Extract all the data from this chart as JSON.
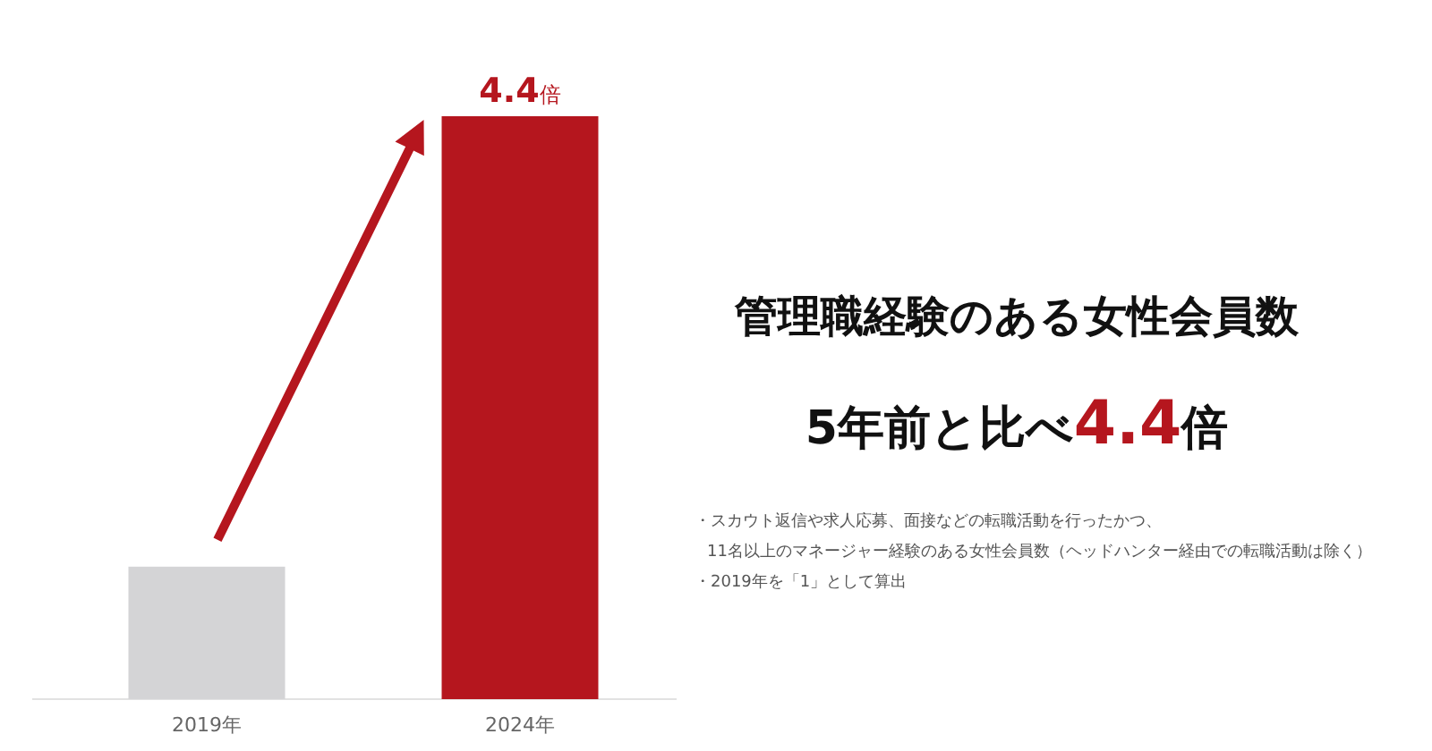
{
  "chart_data": {
    "type": "bar",
    "title": "管理職経験のある女性会員数",
    "subtitle": "5年前と比べ4.4倍",
    "categories": [
      "2019年",
      "2024年"
    ],
    "values": [
      1,
      4.4
    ],
    "colors": [
      "#d4d4d6",
      "#b5161e"
    ],
    "value_labels": [
      null,
      "4.4倍"
    ],
    "annotations": [
      "・スカウト返信や求人応募、面接などの転職活動を行ったかつ、",
      "11名以上のマネージャー経験のある女性会員数（ヘッドハンター経由での転職活動は除く）",
      "・2019年を「1」として算出"
    ]
  }
}
